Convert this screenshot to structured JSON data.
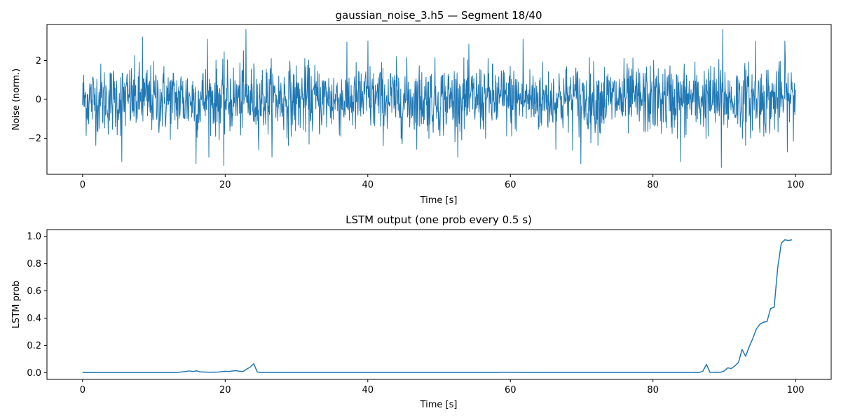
{
  "chart_data": [
    {
      "type": "line",
      "title": "gaussian_noise_3.h5 — Segment 18/40",
      "xlabel": "Time [s]",
      "ylabel": "Noise (norm.)",
      "xlim": [
        -5,
        105
      ],
      "ylim": [
        -3.85,
        3.85
      ],
      "xticks": [
        0,
        20,
        40,
        60,
        80,
        100
      ],
      "yticks": [
        -2,
        0,
        2
      ],
      "series": [
        {
          "color": "#1f77b4",
          "x_range": [
            0,
            100
          ],
          "sample_count": 2000,
          "description_stats": {
            "mean": 0,
            "std": 0.9,
            "min": -3.5,
            "max": 3.6
          },
          "extremes": [
            {
              "x": 19.8,
              "y": -3.4
            },
            {
              "x": 22.9,
              "y": 3.6
            },
            {
              "x": 5.5,
              "y": -3.2
            },
            {
              "x": 15.9,
              "y": -3.3
            },
            {
              "x": 69.9,
              "y": -3.3
            },
            {
              "x": 83.9,
              "y": -3.2
            },
            {
              "x": 89.6,
              "y": -3.5
            },
            {
              "x": 89.8,
              "y": 3.6
            },
            {
              "x": 98.5,
              "y": 3.0
            },
            {
              "x": 8.4,
              "y": 3.2
            },
            {
              "x": 17.5,
              "y": 3.1
            },
            {
              "x": 40.0,
              "y": 3.0
            },
            {
              "x": 61.8,
              "y": 3.1
            },
            {
              "x": 94.4,
              "y": 3.0
            }
          ]
        }
      ]
    },
    {
      "type": "line",
      "title": "LSTM output (one prob every 0.5 s)",
      "xlabel": "Time [s]",
      "ylabel": "LSTM prob",
      "xlim": [
        -5,
        105
      ],
      "ylim": [
        -0.05,
        1.05
      ],
      "xticks": [
        0,
        20,
        40,
        60,
        80,
        100
      ],
      "yticks": [
        0.0,
        0.2,
        0.4,
        0.6,
        0.8,
        1.0
      ],
      "series": [
        {
          "color": "#1f77b4",
          "x": [
            0,
            13,
            14,
            15,
            15.5,
            16,
            16.5,
            17,
            18,
            19,
            20,
            20.5,
            21,
            21.5,
            22,
            22.5,
            23,
            23.5,
            24,
            24.5,
            25,
            58,
            59,
            60,
            62,
            86.5,
            87,
            87.5,
            88,
            89,
            89.5,
            90,
            90.5,
            91,
            91.5,
            92,
            92.5,
            93,
            93.5,
            94,
            94.5,
            95,
            95.5,
            96,
            96.5,
            97,
            97.5,
            98,
            98.5,
            99,
            99.5
          ],
          "y": [
            0.0,
            0.0,
            0.005,
            0.012,
            0.008,
            0.013,
            0.005,
            0.004,
            0.003,
            0.004,
            0.01,
            0.008,
            0.012,
            0.014,
            0.01,
            0.008,
            0.025,
            0.04,
            0.065,
            0.005,
            0.001,
            0.001,
            0.002,
            0.002,
            0.001,
            0.001,
            0.01,
            0.06,
            0.002,
            0.003,
            0.002,
            0.012,
            0.035,
            0.03,
            0.05,
            0.075,
            0.17,
            0.12,
            0.19,
            0.25,
            0.32,
            0.355,
            0.37,
            0.375,
            0.47,
            0.48,
            0.77,
            0.95,
            0.975,
            0.97,
            0.975
          ]
        }
      ]
    }
  ]
}
